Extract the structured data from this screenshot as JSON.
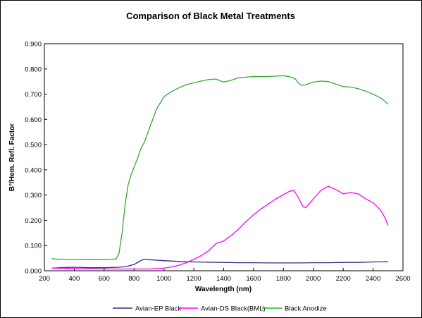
{
  "chart_data": {
    "type": "line",
    "title": "Comparison of Black Metal Treatments",
    "xlabel": "Wavelength (nm)",
    "ylabel": "B°/Hem. Refl. Factor",
    "xlim": [
      200,
      2600
    ],
    "ylim": [
      0,
      0.9
    ],
    "x_ticks": [
      200,
      400,
      600,
      800,
      1000,
      1200,
      1400,
      1600,
      1800,
      2000,
      2200,
      2400,
      2600
    ],
    "x_tick_labels": [
      "200",
      "400",
      "600",
      "800",
      "1000",
      "1200",
      "1400",
      "1600",
      "1800",
      "2000",
      "2200",
      "2400",
      "2600"
    ],
    "y_ticks": [
      0,
      0.1,
      0.2,
      0.3,
      0.4,
      0.5,
      0.6,
      0.7,
      0.8,
      0.9
    ],
    "y_tick_labels": [
      "0.000",
      "0.100",
      "0.200",
      "0.300",
      "0.400",
      "0.500",
      "0.600",
      "0.700",
      "0.800",
      "0.900"
    ],
    "grid": false,
    "legend_position": "bottom",
    "series": [
      {
        "name": "Avian-EP Black",
        "color": "#2b2b8c",
        "x": [
          250,
          300,
          400,
          500,
          600,
          700,
          750,
          800,
          830,
          850,
          870,
          900,
          950,
          1000,
          1100,
          1200,
          1300,
          1400,
          1500,
          1600,
          1700,
          1800,
          1900,
          2000,
          2100,
          2200,
          2300,
          2400,
          2500
        ],
        "y": [
          0.01,
          0.012,
          0.014,
          0.012,
          0.012,
          0.014,
          0.017,
          0.025,
          0.035,
          0.042,
          0.045,
          0.044,
          0.042,
          0.04,
          0.037,
          0.035,
          0.034,
          0.033,
          0.032,
          0.032,
          0.031,
          0.031,
          0.031,
          0.032,
          0.032,
          0.033,
          0.033,
          0.035,
          0.036
        ]
      },
      {
        "name": "Avian-DS Black(BML)",
        "color": "#ff00ff",
        "x": [
          250,
          300,
          400,
          500,
          600,
          700,
          800,
          900,
          1000,
          1050,
          1100,
          1150,
          1200,
          1250,
          1300,
          1350,
          1400,
          1450,
          1500,
          1550,
          1600,
          1650,
          1700,
          1750,
          1800,
          1840,
          1870,
          1900,
          1930,
          1950,
          2000,
          2050,
          2100,
          2150,
          2200,
          2250,
          2300,
          2350,
          2400,
          2450,
          2480,
          2500
        ],
        "y": [
          0.01,
          0.01,
          0.009,
          0.008,
          0.007,
          0.007,
          0.007,
          0.007,
          0.01,
          0.015,
          0.022,
          0.032,
          0.045,
          0.06,
          0.08,
          0.108,
          0.118,
          0.14,
          0.165,
          0.195,
          0.222,
          0.245,
          0.265,
          0.285,
          0.302,
          0.315,
          0.318,
          0.29,
          0.255,
          0.25,
          0.285,
          0.318,
          0.335,
          0.322,
          0.305,
          0.31,
          0.305,
          0.285,
          0.27,
          0.24,
          0.21,
          0.18
        ]
      },
      {
        "name": "Black Anodize",
        "color": "#33aa33",
        "x": [
          250,
          300,
          400,
          500,
          600,
          650,
          680,
          700,
          720,
          740,
          760,
          780,
          800,
          820,
          850,
          870,
          900,
          950,
          1000,
          1050,
          1100,
          1150,
          1200,
          1250,
          1300,
          1350,
          1380,
          1400,
          1450,
          1500,
          1600,
          1700,
          1800,
          1850,
          1880,
          1900,
          1920,
          1950,
          2000,
          2050,
          2100,
          2150,
          2200,
          2250,
          2300,
          2350,
          2400,
          2450,
          2480,
          2500
        ],
        "y": [
          0.048,
          0.045,
          0.045,
          0.044,
          0.044,
          0.045,
          0.047,
          0.07,
          0.15,
          0.26,
          0.34,
          0.38,
          0.41,
          0.44,
          0.49,
          0.51,
          0.56,
          0.64,
          0.69,
          0.71,
          0.725,
          0.738,
          0.745,
          0.752,
          0.758,
          0.76,
          0.752,
          0.748,
          0.755,
          0.765,
          0.77,
          0.77,
          0.773,
          0.768,
          0.76,
          0.745,
          0.735,
          0.738,
          0.748,
          0.752,
          0.75,
          0.74,
          0.73,
          0.728,
          0.722,
          0.712,
          0.7,
          0.685,
          0.672,
          0.66
        ]
      }
    ]
  }
}
